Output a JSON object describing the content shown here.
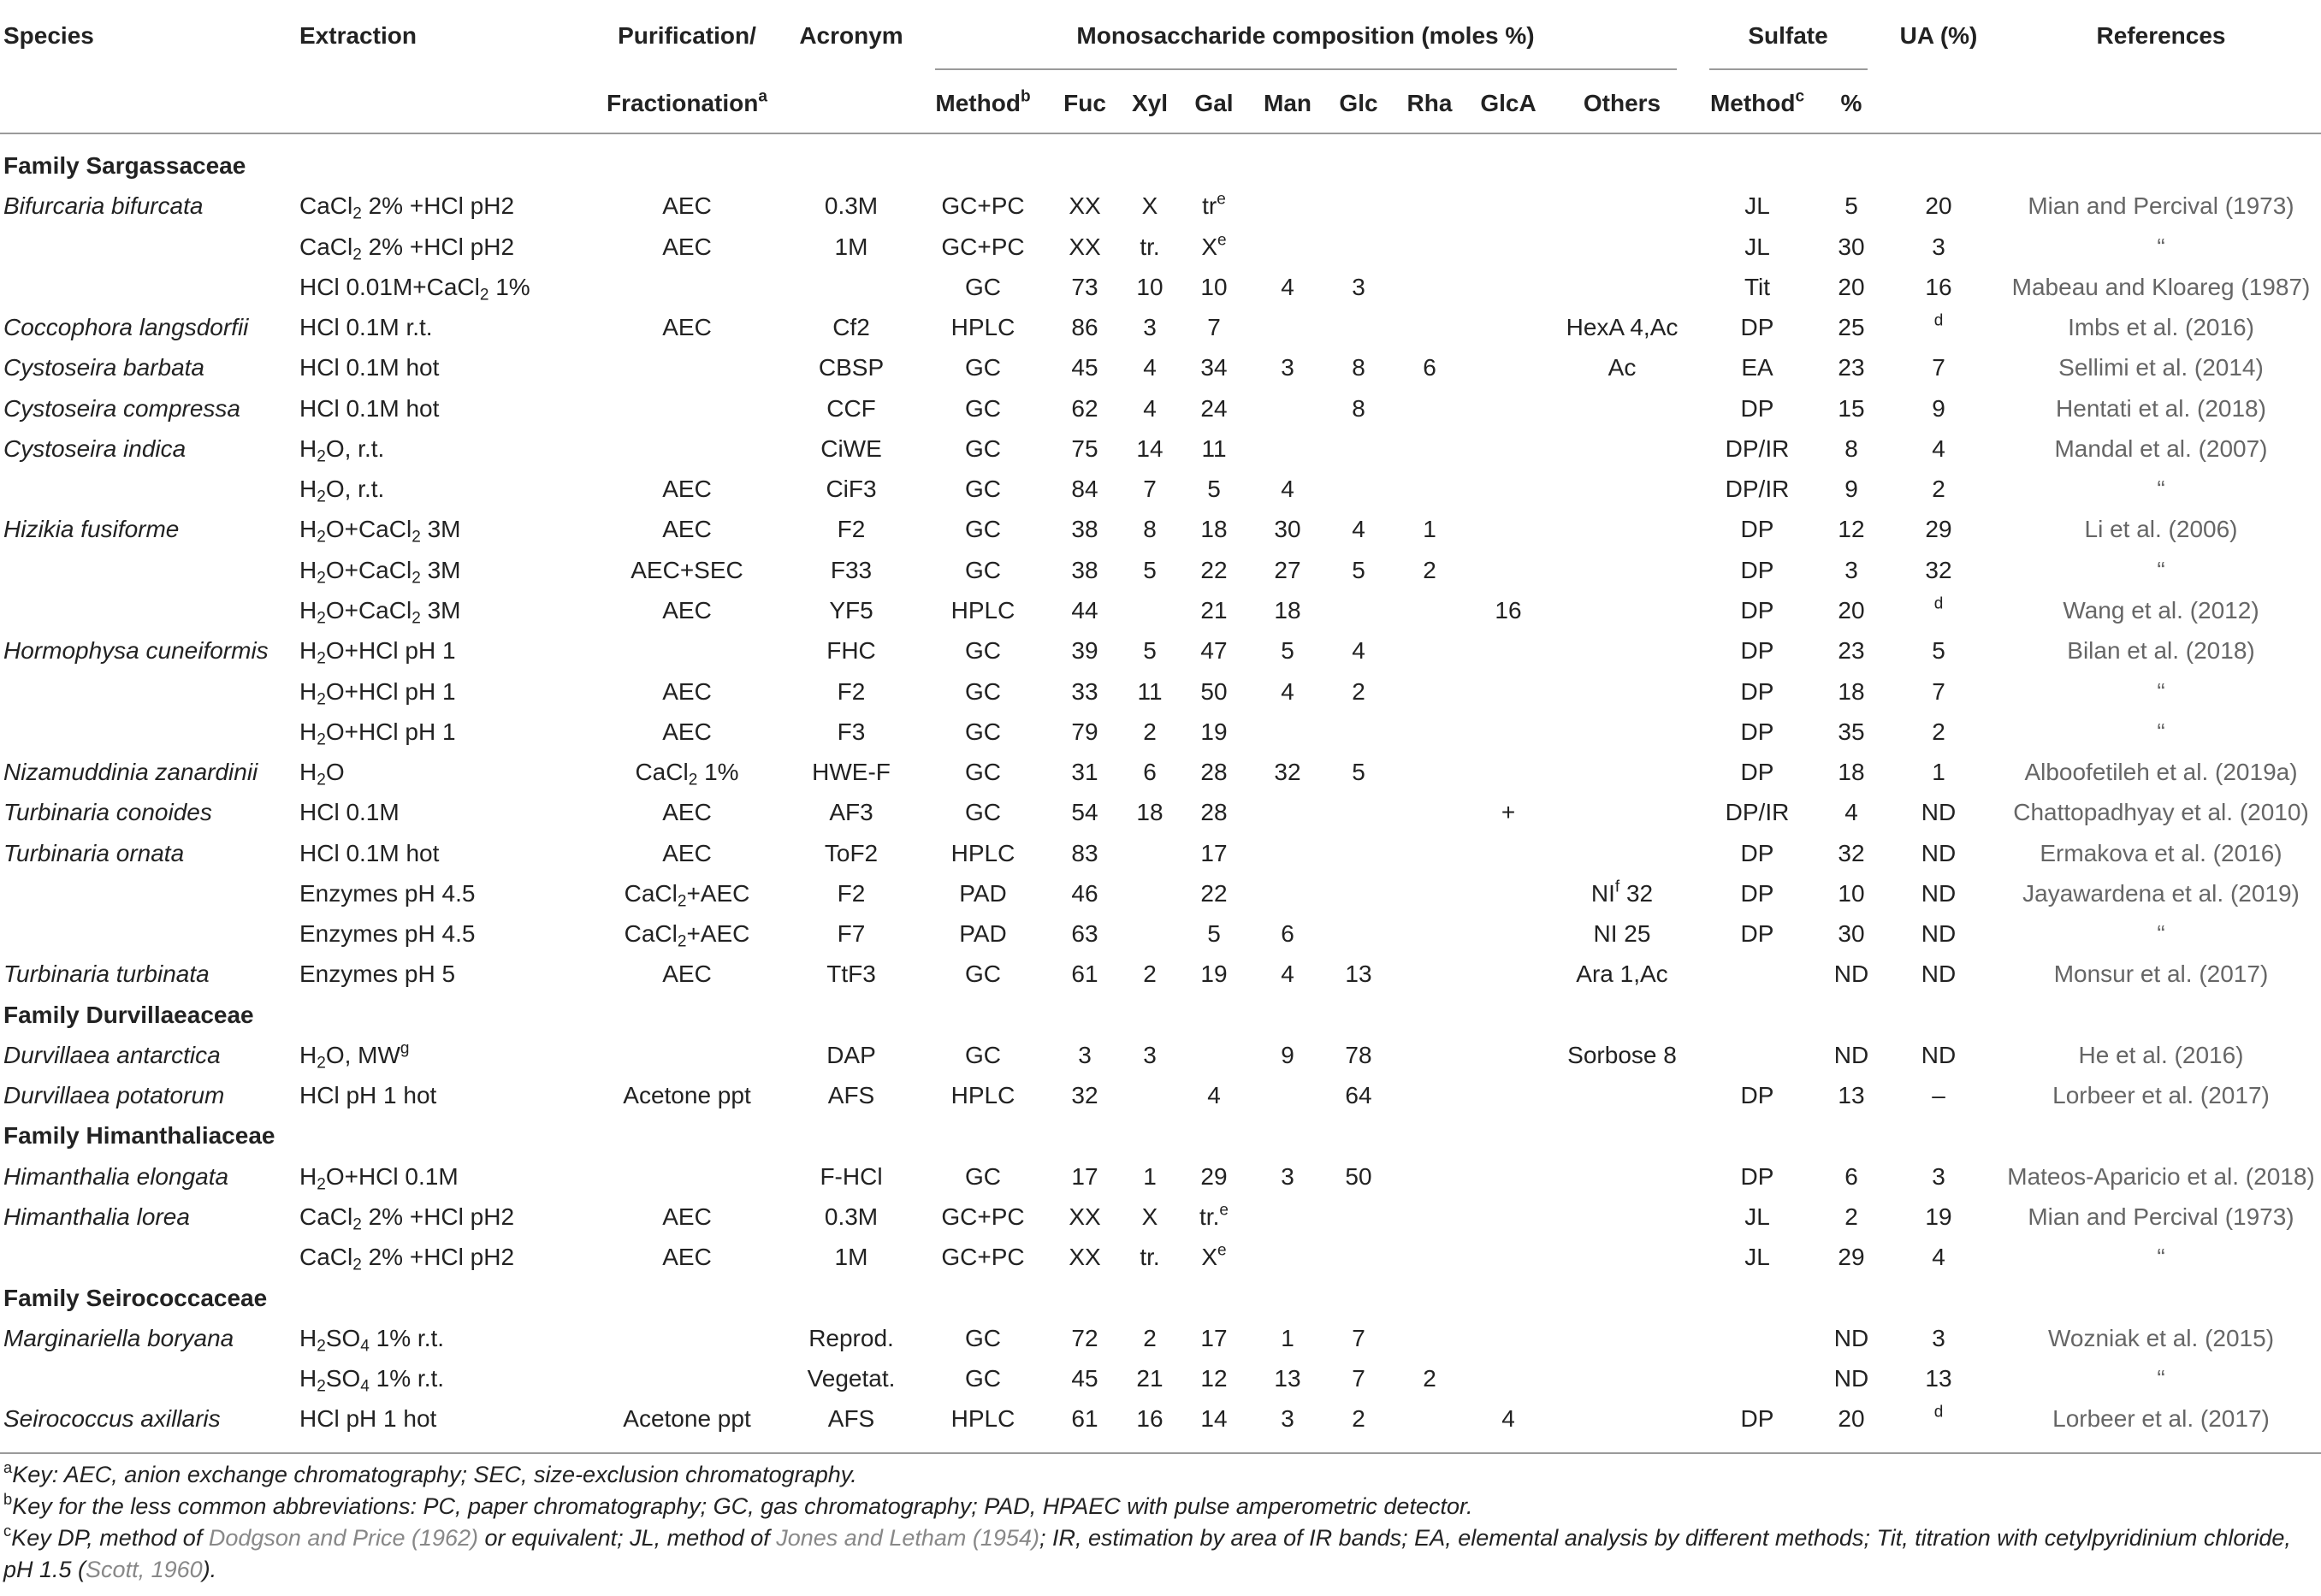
{
  "table": {
    "header": {
      "top": [
        "Species",
        "Extraction",
        "Purification/",
        "Acronym",
        "Monosaccharide composition (moles %)",
        "Sulfate",
        "UA (%)",
        "References"
      ],
      "bottom": [
        [
          {
            "t": "Fractionation"
          },
          {
            "sup": "a"
          }
        ],
        [
          {
            "t": "Method"
          },
          {
            "sup": "b"
          }
        ],
        "Fuc",
        "Xyl",
        "Gal",
        "Man",
        "Glc",
        "Rha",
        "GlcA",
        "Others",
        [
          {
            "t": "Method"
          },
          {
            "sup": "c"
          }
        ],
        "%"
      ]
    },
    "rows": [
      {
        "family": "Family Sargassaceae"
      },
      {
        "cells": [
          "Bifurcaria bifurcata",
          [
            {
              "t": "CaCl"
            },
            {
              "sub": "2"
            },
            {
              "t": " 2% +HCl pH2"
            }
          ],
          "AEC",
          "0.3M",
          "GC+PC",
          "XX",
          "X",
          [
            {
              "t": "tr"
            },
            {
              "sup": "e"
            }
          ],
          null,
          null,
          null,
          null,
          null,
          "JL",
          5,
          20,
          "Mian and Percival (1973)"
        ]
      },
      {
        "cells": [
          null,
          [
            {
              "t": "CaCl"
            },
            {
              "sub": "2"
            },
            {
              "t": " 2% +HCl pH2"
            }
          ],
          "AEC",
          "1M",
          "GC+PC",
          "XX",
          "tr.",
          [
            {
              "t": "X"
            },
            {
              "sup": "e"
            }
          ],
          null,
          null,
          null,
          null,
          null,
          "JL",
          30,
          3,
          "“"
        ]
      },
      {
        "cells": [
          null,
          [
            {
              "t": "HCl 0.01M+CaCl"
            },
            {
              "sub": "2"
            },
            {
              "t": " 1%"
            }
          ],
          null,
          null,
          "GC",
          73,
          10,
          10,
          4,
          3,
          null,
          null,
          null,
          "Tit",
          20,
          16,
          "Mabeau and Kloareg (1987)"
        ]
      },
      {
        "cells": [
          "Coccophora langsdorfii",
          "HCl 0.1M r.t.",
          "AEC",
          "Cf2",
          "HPLC",
          86,
          3,
          7,
          null,
          null,
          null,
          null,
          "HexA 4,Ac",
          "DP",
          25,
          [
            {
              "sup": "d"
            }
          ],
          "Imbs et al. (2016)"
        ]
      },
      {
        "cells": [
          "Cystoseira barbata",
          "HCl 0.1M hot",
          null,
          "CBSP",
          "GC",
          45,
          4,
          34,
          3,
          8,
          6,
          null,
          "Ac",
          "EA",
          23,
          7,
          "Sellimi et al. (2014)"
        ]
      },
      {
        "cells": [
          "Cystoseira compressa",
          "HCl 0.1M hot",
          null,
          "CCF",
          "GC",
          62,
          4,
          24,
          null,
          8,
          null,
          null,
          null,
          "DP",
          15,
          9,
          "Hentati et al. (2018)"
        ]
      },
      {
        "cells": [
          "Cystoseira indica",
          [
            {
              "t": "H"
            },
            {
              "sub": "2"
            },
            {
              "t": "O, r.t."
            }
          ],
          null,
          "CiWE",
          "GC",
          75,
          14,
          11,
          null,
          null,
          null,
          null,
          null,
          "DP/IR",
          8,
          4,
          "Mandal et al. (2007)"
        ]
      },
      {
        "cells": [
          null,
          [
            {
              "t": "H"
            },
            {
              "sub": "2"
            },
            {
              "t": "O, r.t."
            }
          ],
          "AEC",
          "CiF3",
          "GC",
          84,
          7,
          5,
          4,
          null,
          null,
          null,
          null,
          "DP/IR",
          9,
          2,
          "“"
        ]
      },
      {
        "cells": [
          "Hizikia fusiforme",
          [
            {
              "t": "H"
            },
            {
              "sub": "2"
            },
            {
              "t": "O+CaCl"
            },
            {
              "sub": "2"
            },
            {
              "t": " 3M"
            }
          ],
          "AEC",
          "F2",
          "GC",
          38,
          8,
          18,
          30,
          4,
          1,
          null,
          null,
          "DP",
          12,
          29,
          "Li et al. (2006)"
        ]
      },
      {
        "cells": [
          null,
          [
            {
              "t": "H"
            },
            {
              "sub": "2"
            },
            {
              "t": "O+CaCl"
            },
            {
              "sub": "2"
            },
            {
              "t": " 3M"
            }
          ],
          "AEC+SEC",
          "F33",
          "GC",
          38,
          5,
          22,
          27,
          5,
          2,
          null,
          null,
          "DP",
          3,
          32,
          "“"
        ]
      },
      {
        "cells": [
          null,
          [
            {
              "t": "H"
            },
            {
              "sub": "2"
            },
            {
              "t": "O+CaCl"
            },
            {
              "sub": "2"
            },
            {
              "t": " 3M"
            }
          ],
          "AEC",
          "YF5",
          "HPLC",
          44,
          null,
          21,
          18,
          null,
          null,
          16,
          null,
          "DP",
          20,
          [
            {
              "sup": "d"
            }
          ],
          "Wang et al. (2012)"
        ]
      },
      {
        "cells": [
          "Hormophysa cuneiformis",
          [
            {
              "t": "H"
            },
            {
              "sub": "2"
            },
            {
              "t": "O+HCl pH 1"
            }
          ],
          null,
          "FHC",
          "GC",
          39,
          5,
          47,
          5,
          4,
          null,
          null,
          null,
          "DP",
          23,
          5,
          "Bilan et al. (2018)"
        ]
      },
      {
        "cells": [
          null,
          [
            {
              "t": "H"
            },
            {
              "sub": "2"
            },
            {
              "t": "O+HCl pH 1"
            }
          ],
          "AEC",
          "F2",
          "GC",
          33,
          11,
          50,
          4,
          2,
          null,
          null,
          null,
          "DP",
          18,
          7,
          "“"
        ]
      },
      {
        "cells": [
          null,
          [
            {
              "t": "H"
            },
            {
              "sub": "2"
            },
            {
              "t": "O+HCl pH 1"
            }
          ],
          "AEC",
          "F3",
          "GC",
          79,
          2,
          19,
          null,
          null,
          null,
          null,
          null,
          "DP",
          35,
          2,
          "“"
        ]
      },
      {
        "cells": [
          "Nizamuddinia zanardinii",
          [
            {
              "t": "H"
            },
            {
              "sub": "2"
            },
            {
              "t": "O"
            }
          ],
          [
            {
              "t": "CaCl"
            },
            {
              "sub": "2"
            },
            {
              "t": " 1%"
            }
          ],
          "HWE-F",
          "GC",
          31,
          6,
          28,
          32,
          5,
          null,
          null,
          null,
          "DP",
          18,
          1,
          "Alboofetileh et al. (2019a)"
        ]
      },
      {
        "cells": [
          "Turbinaria conoides",
          "HCl 0.1M",
          "AEC",
          "AF3",
          "GC",
          54,
          18,
          28,
          null,
          null,
          null,
          "+",
          null,
          "DP/IR",
          4,
          "ND",
          "Chattopadhyay et al. (2010)"
        ]
      },
      {
        "cells": [
          "Turbinaria ornata",
          "HCl 0.1M hot",
          "AEC",
          "ToF2",
          "HPLC",
          83,
          null,
          17,
          null,
          null,
          null,
          null,
          null,
          "DP",
          32,
          "ND",
          "Ermakova et al. (2016)"
        ]
      },
      {
        "cells": [
          null,
          "Enzymes pH 4.5",
          [
            {
              "t": "CaCl"
            },
            {
              "sub": "2"
            },
            {
              "t": "+AEC"
            }
          ],
          "F2",
          "PAD",
          46,
          null,
          22,
          null,
          null,
          null,
          null,
          [
            {
              "t": "NI"
            },
            {
              "sup": "f"
            },
            {
              "t": " 32"
            }
          ],
          "DP",
          10,
          "ND",
          "Jayawardena et al. (2019)"
        ]
      },
      {
        "cells": [
          null,
          "Enzymes pH 4.5",
          [
            {
              "t": "CaCl"
            },
            {
              "sub": "2"
            },
            {
              "t": "+AEC"
            }
          ],
          "F7",
          "PAD",
          63,
          null,
          5,
          6,
          null,
          null,
          null,
          "NI 25",
          "DP",
          30,
          "ND",
          "“"
        ]
      },
      {
        "cells": [
          "Turbinaria turbinata",
          "Enzymes pH 5",
          "AEC",
          "TtF3",
          "GC",
          61,
          2,
          19,
          4,
          13,
          null,
          null,
          "Ara 1,Ac",
          null,
          "ND",
          "ND",
          "Monsur et al. (2017)"
        ]
      },
      {
        "family": "Family Durvillaeaceae"
      },
      {
        "cells": [
          "Durvillaea antarctica",
          [
            {
              "t": "H"
            },
            {
              "sub": "2"
            },
            {
              "t": "O, MW"
            },
            {
              "sup": "g"
            }
          ],
          null,
          "DAP",
          "GC",
          3,
          3,
          null,
          9,
          78,
          null,
          null,
          "Sorbose 8",
          null,
          "ND",
          "ND",
          "He et al. (2016)"
        ]
      },
      {
        "cells": [
          "Durvillaea potatorum",
          "HCl pH 1 hot",
          "Acetone ppt",
          "AFS",
          "HPLC",
          32,
          null,
          4,
          null,
          64,
          null,
          null,
          null,
          "DP",
          13,
          "–",
          "Lorbeer et al. (2017)"
        ]
      },
      {
        "family": "Family Himanthaliaceae"
      },
      {
        "cells": [
          "Himanthalia elongata",
          [
            {
              "t": "H"
            },
            {
              "sub": "2"
            },
            {
              "t": "O+HCl 0.1M"
            }
          ],
          null,
          "F-HCl",
          "GC",
          17,
          1,
          29,
          3,
          50,
          null,
          null,
          null,
          "DP",
          6,
          3,
          "Mateos-Aparicio et al. (2018)"
        ]
      },
      {
        "cells": [
          "Himanthalia lorea",
          [
            {
              "t": "CaCl"
            },
            {
              "sub": "2"
            },
            {
              "t": " 2% +HCl pH2"
            }
          ],
          "AEC",
          "0.3M",
          "GC+PC",
          "XX",
          "X",
          [
            {
              "t": "tr."
            },
            {
              "sup": "e"
            }
          ],
          null,
          null,
          null,
          null,
          null,
          "JL",
          2,
          19,
          "Mian and Percival (1973)"
        ]
      },
      {
        "cells": [
          null,
          [
            {
              "t": "CaCl"
            },
            {
              "sub": "2"
            },
            {
              "t": " 2% +HCl pH2"
            }
          ],
          "AEC",
          "1M",
          "GC+PC",
          "XX",
          "tr.",
          [
            {
              "t": "X"
            },
            {
              "sup": "e"
            }
          ],
          null,
          null,
          null,
          null,
          null,
          "JL",
          29,
          4,
          "“"
        ]
      },
      {
        "family": "Family Seirococcaceae"
      },
      {
        "cells": [
          "Marginariella boryana",
          [
            {
              "t": "H"
            },
            {
              "sub": "2"
            },
            {
              "t": "SO"
            },
            {
              "sub": "4"
            },
            {
              "t": " 1% r.t."
            }
          ],
          null,
          "Reprod.",
          "GC",
          72,
          2,
          17,
          1,
          7,
          null,
          null,
          null,
          null,
          "ND",
          3,
          "Wozniak et al. (2015)"
        ]
      },
      {
        "cells": [
          null,
          [
            {
              "t": "H"
            },
            {
              "sub": "2"
            },
            {
              "t": "SO"
            },
            {
              "sub": "4"
            },
            {
              "t": " 1% r.t."
            }
          ],
          null,
          "Vegetat.",
          "GC",
          45,
          21,
          12,
          13,
          7,
          2,
          null,
          null,
          null,
          "ND",
          13,
          "“"
        ]
      },
      {
        "cells": [
          "Seirococcus axillaris",
          "HCl pH 1 hot",
          "Acetone ppt",
          "AFS",
          "HPLC",
          61,
          16,
          14,
          3,
          2,
          null,
          4,
          null,
          "DP",
          20,
          [
            {
              "sup": "d"
            }
          ],
          "Lorbeer et al. (2017)"
        ]
      }
    ],
    "footnotes": [
      [
        {
          "sup": "a"
        },
        {
          "t": "Key: AEC, anion exchange chromatography; SEC, size-exclusion chromatography."
        }
      ],
      [
        {
          "sup": "b"
        },
        {
          "t": "Key for the less common abbreviations: PC, paper chromatography; GC, gas chromatography; PAD, HPAEC with pulse amperometric detector."
        }
      ],
      [
        {
          "sup": "c"
        },
        {
          "t": "Key DP, method of "
        },
        {
          "link": "Dodgson and Price (1962)"
        },
        {
          "t": " or equivalent; JL, method of "
        },
        {
          "link": "Jones and Letham (1954)"
        },
        {
          "t": "; IR, estimation by area of IR bands; EA, elemental analysis by different methods; Tit, titration with cetylpyridinium chloride, pH 1.5 ("
        },
        {
          "link": "Scott, 1960"
        },
        {
          "t": ")."
        }
      ]
    ]
  }
}
